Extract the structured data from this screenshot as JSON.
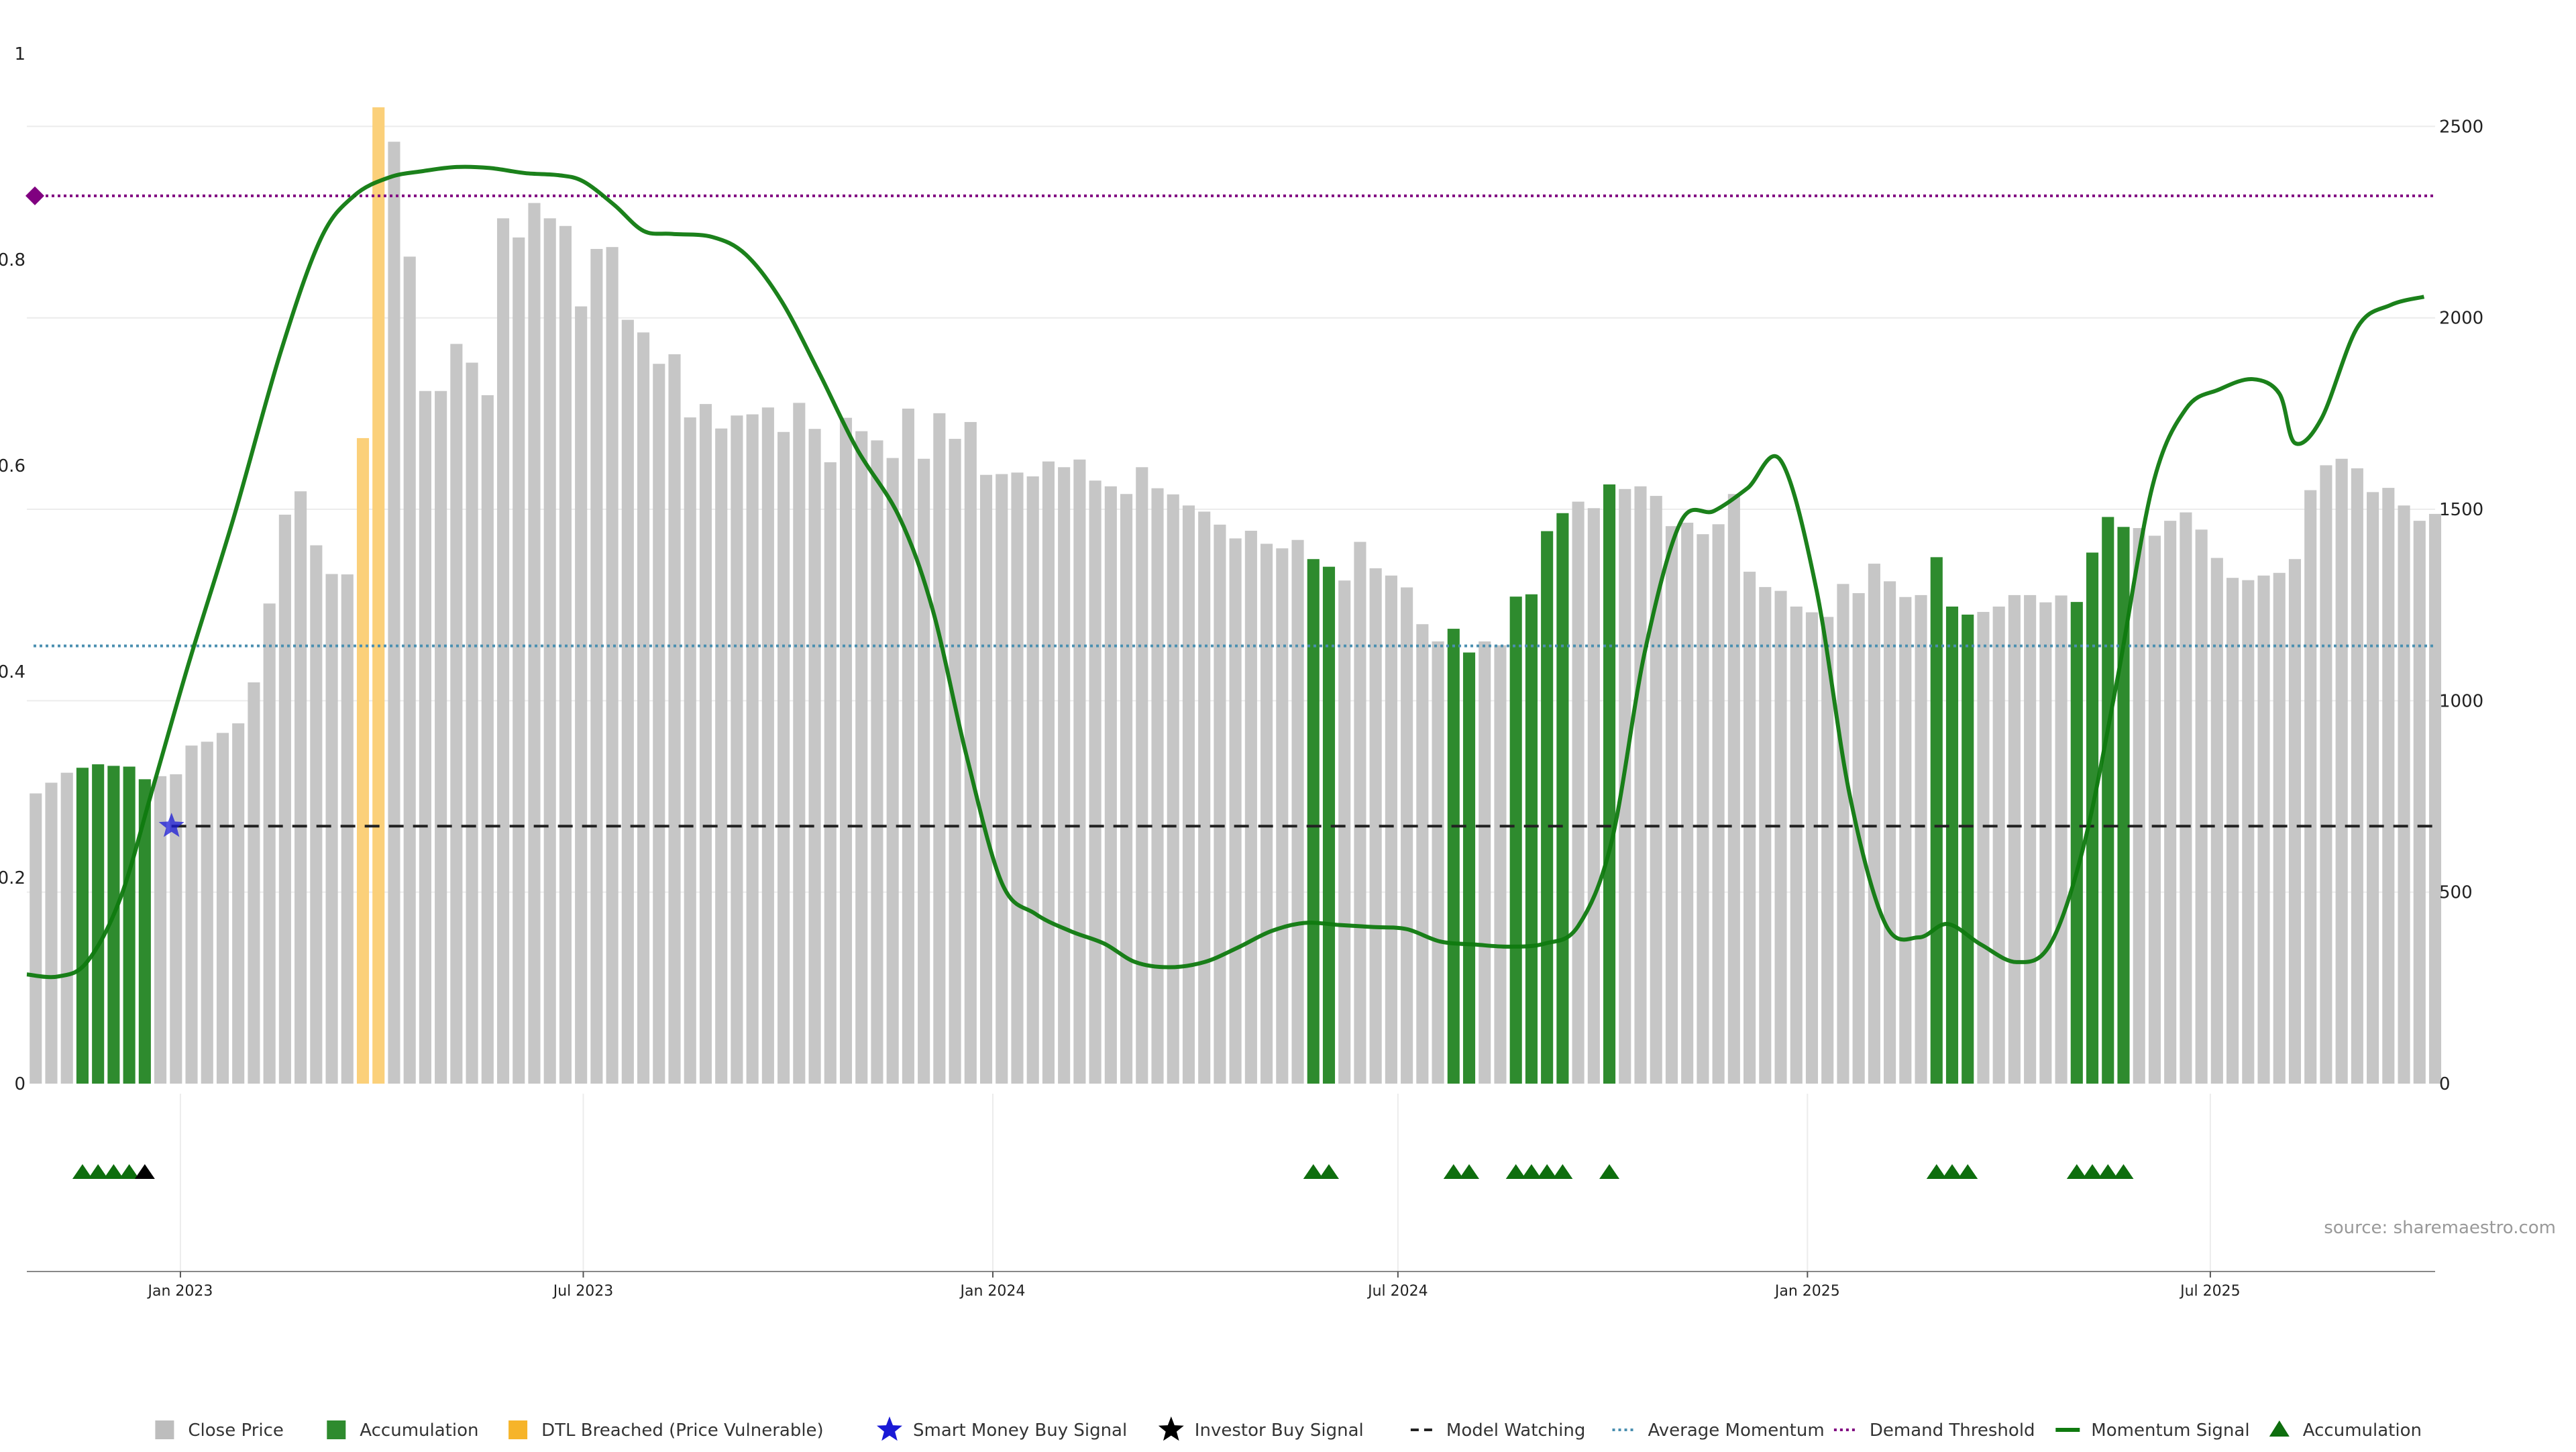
{
  "chart_data": {
    "type": "bar",
    "source_text": "source: sharemaestro.com",
    "left_axis": {
      "ticks": [
        0,
        0.2,
        0.4,
        0.6,
        0.8,
        1
      ],
      "tick_labels": [
        "0",
        "0.2",
        "0.4",
        "0.6",
        "0.8",
        "1"
      ],
      "range": [
        0,
        1
      ]
    },
    "right_axis": {
      "ticks": [
        0,
        500,
        1000,
        1500,
        2000,
        2500
      ],
      "tick_labels": [
        "0",
        "500",
        "1000",
        "1500",
        "2000",
        "2500"
      ],
      "range": [
        0,
        2690
      ]
    },
    "x_axis": {
      "start": "2022-10-24",
      "end": "2025-10-10",
      "ticks": [
        {
          "date": "2023-01-01",
          "label": "Jan 2023"
        },
        {
          "date": "2023-07-01",
          "label": "Jul 2023"
        },
        {
          "date": "2024-01-01",
          "label": "Jan 2024"
        },
        {
          "date": "2024-07-01",
          "label": "Jul 2024"
        },
        {
          "date": "2025-01-01",
          "label": "Jan 2025"
        },
        {
          "date": "2025-07-01",
          "label": "Jul 2025"
        }
      ]
    },
    "bars_start": "2022-10-28",
    "bar_interval_days": 7,
    "close_price": [
      758,
      786,
      812,
      825,
      834,
      830,
      828,
      795,
      803,
      808,
      883,
      893,
      916,
      941,
      1048,
      1254,
      1486,
      1547,
      1406,
      1331,
      1330,
      1686,
      2550,
      2460,
      2160,
      1809,
      1809,
      1932,
      1883,
      1798,
      2260,
      2210,
      2300,
      2260,
      2240,
      2030,
      2180,
      2185,
      1995,
      1962,
      1880,
      1905,
      1740,
      1775,
      1711,
      1745,
      1748,
      1766,
      1702,
      1778,
      1710,
      1623,
      1739,
      1704,
      1680,
      1634,
      1763,
      1632,
      1751,
      1684,
      1728,
      1590,
      1592,
      1596,
      1586,
      1625,
      1610,
      1630,
      1575,
      1560,
      1540,
      1610,
      1555,
      1539,
      1510,
      1494,
      1460,
      1424,
      1444,
      1410,
      1398,
      1420,
      1370,
      1350,
      1314,
      1415,
      1346,
      1327,
      1296,
      1200,
      1155,
      1188,
      1126,
      1155,
      1145,
      1272,
      1278,
      1443,
      1490,
      1520,
      1503,
      1565,
      1553,
      1560,
      1535,
      1456,
      1465,
      1435,
      1461,
      1540,
      1337,
      1297,
      1287,
      1246,
      1231,
      1219,
      1305,
      1281,
      1358,
      1312,
      1271,
      1276,
      1375,
      1246,
      1225,
      1232,
      1246,
      1276,
      1276,
      1257,
      1275,
      1258,
      1387,
      1480,
      1454,
      1451,
      1431,
      1470,
      1492,
      1447,
      1373,
      1321,
      1315,
      1327,
      1334,
      1370,
      1550,
      1615,
      1632,
      1607,
      1545,
      1556,
      1510,
      1470,
      1488
    ],
    "accumulation_indices": [
      3,
      4,
      5,
      6,
      7,
      82,
      83,
      91,
      92,
      95,
      96,
      97,
      98,
      101,
      122,
      123,
      124,
      131,
      132,
      133,
      134
    ],
    "dtl_breached_indices": [
      21,
      22
    ],
    "accumulation_marker_indices": [
      3,
      4,
      5,
      6,
      82,
      83,
      91,
      92,
      95,
      96,
      97,
      98,
      101,
      122,
      123,
      124,
      131,
      132,
      133,
      134
    ],
    "investor_buy_marker_indices": [
      7
    ],
    "momentum_signal": [
      [
        "2022-10-24",
        0.106
      ],
      [
        "2022-11-07",
        0.104
      ],
      [
        "2022-11-20",
        0.118
      ],
      [
        "2022-12-05",
        0.18
      ],
      [
        "2022-12-20",
        0.29
      ],
      [
        "2023-01-05",
        0.41
      ],
      [
        "2023-01-25",
        0.55
      ],
      [
        "2023-02-15",
        0.71
      ],
      [
        "2023-03-05",
        0.82
      ],
      [
        "2023-03-20",
        0.862
      ],
      [
        "2023-04-05",
        0.88
      ],
      [
        "2023-04-20",
        0.886
      ],
      [
        "2023-05-05",
        0.89
      ],
      [
        "2023-05-20",
        0.889
      ],
      [
        "2023-06-05",
        0.884
      ],
      [
        "2023-06-20",
        0.882
      ],
      [
        "2023-07-01",
        0.876
      ],
      [
        "2023-07-15",
        0.853
      ],
      [
        "2023-07-28",
        0.828
      ],
      [
        "2023-08-10",
        0.825
      ],
      [
        "2023-08-28",
        0.822
      ],
      [
        "2023-09-12",
        0.805
      ],
      [
        "2023-09-28",
        0.76
      ],
      [
        "2023-10-15",
        0.69
      ],
      [
        "2023-11-01",
        0.616
      ],
      [
        "2023-11-20",
        0.55
      ],
      [
        "2023-12-05",
        0.46
      ],
      [
        "2023-12-20",
        0.32
      ],
      [
        "2024-01-05",
        0.195
      ],
      [
        "2024-01-20",
        0.165
      ],
      [
        "2024-02-05",
        0.148
      ],
      [
        "2024-02-20",
        0.136
      ],
      [
        "2024-03-05",
        0.118
      ],
      [
        "2024-03-20",
        0.113
      ],
      [
        "2024-04-05",
        0.118
      ],
      [
        "2024-04-20",
        0.132
      ],
      [
        "2024-05-05",
        0.148
      ],
      [
        "2024-05-20",
        0.156
      ],
      [
        "2024-06-05",
        0.154
      ],
      [
        "2024-06-20",
        0.152
      ],
      [
        "2024-07-05",
        0.15
      ],
      [
        "2024-07-20",
        0.138
      ],
      [
        "2024-08-05",
        0.135
      ],
      [
        "2024-08-20",
        0.133
      ],
      [
        "2024-09-05",
        0.136
      ],
      [
        "2024-09-20",
        0.153
      ],
      [
        "2024-10-05",
        0.235
      ],
      [
        "2024-10-20",
        0.42
      ],
      [
        "2024-11-05",
        0.545
      ],
      [
        "2024-11-20",
        0.556
      ],
      [
        "2024-12-05",
        0.578
      ],
      [
        "2024-12-20",
        0.605
      ],
      [
        "2025-01-05",
        0.48
      ],
      [
        "2025-01-20",
        0.28
      ],
      [
        "2025-02-05",
        0.155
      ],
      [
        "2025-02-20",
        0.142
      ],
      [
        "2025-03-05",
        0.155
      ],
      [
        "2025-03-20",
        0.135
      ],
      [
        "2025-04-05",
        0.118
      ],
      [
        "2025-04-20",
        0.135
      ],
      [
        "2025-05-05",
        0.23
      ],
      [
        "2025-05-20",
        0.39
      ],
      [
        "2025-06-05",
        0.58
      ],
      [
        "2025-06-20",
        0.655
      ],
      [
        "2025-07-05",
        0.674
      ],
      [
        "2025-07-20",
        0.684
      ],
      [
        "2025-08-01",
        0.67
      ],
      [
        "2025-08-08",
        0.622
      ],
      [
        "2025-08-20",
        0.646
      ],
      [
        "2025-09-05",
        0.734
      ],
      [
        "2025-09-20",
        0.756
      ],
      [
        "2025-10-05",
        0.764
      ]
    ],
    "model_watching": {
      "value": 0.25,
      "start": "2022-12-28",
      "star_date": "2022-12-28"
    },
    "average_momentum": 0.425,
    "demand_threshold": 0.862,
    "colors": {
      "close_price": "#c6c6c6",
      "accumulation": "#2e8b2e",
      "dtl_breached": "#fbd07a",
      "smart_money": "#1a1ad6",
      "investor_buy": "#000000",
      "model_watching": "#222222",
      "average_momentum": "#4a8fb0",
      "demand_threshold": "#800080",
      "momentum_signal": "#0f7a0f",
      "accumulation_marker": "#0e6e0e"
    }
  },
  "legend": [
    {
      "key": "close_price",
      "label": "Close Price",
      "shape": "square",
      "color": "#bdbdbd"
    },
    {
      "key": "accumulation",
      "label": "Accumulation",
      "shape": "square",
      "color": "#2e8b2e"
    },
    {
      "key": "dtl_breached",
      "label": "DTL Breached (Price Vulnerable)",
      "shape": "square",
      "color": "#f6b42a"
    },
    {
      "key": "smart_money",
      "label": "Smart Money Buy Signal",
      "shape": "star",
      "color": "#1a1ad6"
    },
    {
      "key": "investor_buy",
      "label": "Investor Buy Signal",
      "shape": "star",
      "color": "#000000"
    },
    {
      "key": "model_watching",
      "label": "Model Watching",
      "shape": "dash",
      "color": "#222222"
    },
    {
      "key": "average_momentum",
      "label": "Average Momentum",
      "shape": "dot",
      "color": "#4a8fb0"
    },
    {
      "key": "demand_threshold",
      "label": "Demand Threshold",
      "shape": "dot",
      "color": "#800080"
    },
    {
      "key": "momentum_signal",
      "label": "Momentum Signal",
      "shape": "line",
      "color": "#0f7a0f"
    },
    {
      "key": "accumulation_marker",
      "label": "Accumulation",
      "shape": "triangle",
      "color": "#0e6e0e"
    }
  ]
}
